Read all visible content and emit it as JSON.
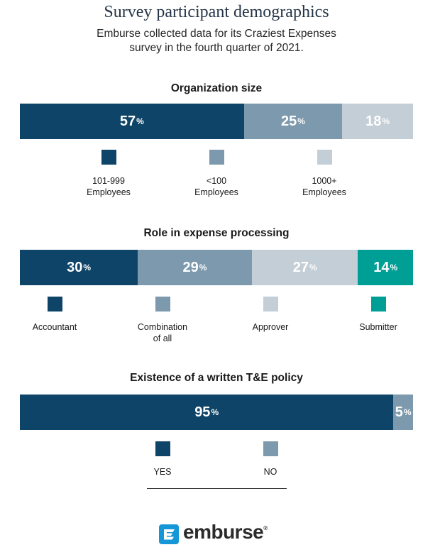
{
  "header": {
    "title": "Survey participant demographics",
    "subtitle_line1": "Emburse collected data for its Craziest Expenses",
    "subtitle_line2": "survey in the fourth quarter of 2021."
  },
  "colors": {
    "dark_navy": "#0e4467",
    "slate": "#7c99ad",
    "light_gray": "#c3ced7",
    "teal": "#009f95"
  },
  "chart_data": [
    {
      "type": "bar",
      "stacked": true,
      "orientation": "horizontal",
      "title": "Organization size",
      "unit": "%",
      "series": [
        {
          "name": "101-999 Employees",
          "label_line1": "101-999",
          "label_line2": "Employees",
          "value": 57,
          "color": "#0e4467"
        },
        {
          "name": "<100 Employees",
          "label_line1": "<100",
          "label_line2": "Employees",
          "value": 25,
          "color": "#7c99ad"
        },
        {
          "name": "1000+ Employees",
          "label_line1": "1000+",
          "label_line2": "Employees",
          "value": 18,
          "color": "#c3ced7"
        }
      ]
    },
    {
      "type": "bar",
      "stacked": true,
      "orientation": "horizontal",
      "title": "Role in expense processing",
      "unit": "%",
      "series": [
        {
          "name": "Accountant",
          "label_line1": "Accountant",
          "label_line2": "",
          "value": 30,
          "color": "#0e4467"
        },
        {
          "name": "Combination of all",
          "label_line1": "Combination",
          "label_line2": "of all",
          "value": 29,
          "color": "#7c99ad"
        },
        {
          "name": "Approver",
          "label_line1": "Approver",
          "label_line2": "",
          "value": 27,
          "color": "#c3ced7"
        },
        {
          "name": "Submitter",
          "label_line1": "Submitter",
          "label_line2": "",
          "value": 14,
          "color": "#009f95"
        }
      ]
    },
    {
      "type": "bar",
      "stacked": true,
      "orientation": "horizontal",
      "title": "Existence of a written T&E policy",
      "unit": "%",
      "series": [
        {
          "name": "YES",
          "label_line1": "YES",
          "label_line2": "",
          "value": 95,
          "color": "#0e4467"
        },
        {
          "name": "NO",
          "label_line1": "NO",
          "label_line2": "",
          "value": 5,
          "color": "#7c99ad"
        }
      ]
    }
  ],
  "logo": {
    "icon": "emburse-logo-icon",
    "text": "emburse",
    "trademark": "®"
  }
}
